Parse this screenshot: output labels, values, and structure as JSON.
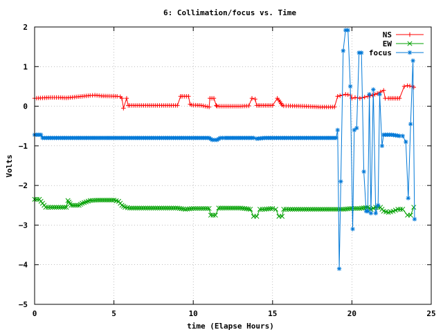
{
  "chart_data": {
    "type": "line",
    "title": "6: Collimation/focus vs. Time",
    "xlabel": "time (Elapse Hours)",
    "ylabel": "Volts",
    "xlim": [
      0,
      25
    ],
    "ylim": [
      -5,
      2
    ],
    "xticks": [
      "0",
      "5",
      "10",
      "15",
      "20",
      "25"
    ],
    "yticks": [
      "2",
      "1",
      "0",
      "−1",
      "−2",
      "−3",
      "−4",
      "−5"
    ],
    "grid": true,
    "legend_position": "top-right",
    "series": [
      {
        "name": "NS",
        "color": "#ff0000",
        "marker": "plus",
        "x": [
          0,
          0.5,
          1,
          1.5,
          2,
          2.5,
          3,
          3.5,
          3.8,
          4.2,
          5.2,
          5.4,
          5.5,
          5.6,
          5.8,
          5.9,
          6,
          7,
          8,
          9,
          9.2,
          9.3,
          9.7,
          9.8,
          9.9,
          10.5,
          11,
          11.05,
          11.3,
          11.45,
          11.5,
          12,
          13,
          13.5,
          13.7,
          13.9,
          14,
          14.1,
          14.2,
          15,
          15.3,
          15.4,
          15.6,
          15.7,
          16,
          17,
          18,
          18.9,
          19.1,
          19.4,
          19.6,
          19.9,
          20,
          20.2,
          20.5,
          20.8,
          21,
          21.3,
          21.6,
          21.8,
          22,
          22.1,
          22.3,
          23,
          23.3,
          23.5,
          23.8,
          23.9
        ],
        "y": [
          0.2,
          0.21,
          0.22,
          0.22,
          0.21,
          0.23,
          0.25,
          0.27,
          0.28,
          0.26,
          0.25,
          0.24,
          0.2,
          -0.05,
          0.2,
          0.02,
          0.02,
          0.02,
          0.02,
          0.02,
          0.25,
          0.25,
          0.25,
          0.05,
          0.03,
          0.02,
          -0.02,
          0.2,
          0.2,
          0.02,
          0.0,
          0.0,
          0.0,
          0.01,
          0.2,
          0.18,
          0.02,
          0.02,
          0.02,
          0.02,
          0.2,
          0.15,
          0.03,
          0.01,
          0.01,
          0.0,
          -0.02,
          -0.02,
          0.25,
          0.28,
          0.3,
          0.28,
          0.2,
          0.22,
          0.2,
          0.23,
          0.25,
          0.28,
          0.32,
          0.36,
          0.4,
          0.2,
          0.2,
          0.2,
          0.5,
          0.52,
          0.5,
          0.48
        ]
      },
      {
        "name": "EW",
        "color": "#00a000",
        "marker": "cross",
        "x": [
          0,
          0.3,
          0.5,
          0.7,
          1,
          1.5,
          2,
          2.1,
          2.3,
          2.8,
          3,
          3.5,
          4,
          5,
          5.3,
          5.5,
          5.7,
          6,
          7,
          8,
          9,
          9.5,
          10,
          10.5,
          11,
          11.1,
          11.4,
          11.6,
          12,
          13,
          13.6,
          13.8,
          14,
          14.2,
          14.5,
          15,
          15.2,
          15.4,
          15.6,
          15.7,
          16,
          17,
          18,
          19,
          19.5,
          20,
          20.5,
          21,
          21.2,
          21.5,
          21.8,
          22,
          22.3,
          22.6,
          22.9,
          23.2,
          23.5,
          23.7,
          23.9
        ],
        "y": [
          -2.35,
          -2.35,
          -2.45,
          -2.55,
          -2.55,
          -2.55,
          -2.55,
          -2.38,
          -2.5,
          -2.5,
          -2.45,
          -2.38,
          -2.37,
          -2.37,
          -2.4,
          -2.5,
          -2.55,
          -2.57,
          -2.57,
          -2.57,
          -2.57,
          -2.6,
          -2.58,
          -2.58,
          -2.58,
          -2.75,
          -2.75,
          -2.57,
          -2.57,
          -2.57,
          -2.6,
          -2.78,
          -2.78,
          -2.6,
          -2.6,
          -2.58,
          -2.6,
          -2.78,
          -2.78,
          -2.6,
          -2.6,
          -2.6,
          -2.6,
          -2.6,
          -2.6,
          -2.58,
          -2.58,
          -2.55,
          -2.6,
          -2.55,
          -2.55,
          -2.65,
          -2.68,
          -2.65,
          -2.6,
          -2.6,
          -2.75,
          -2.75,
          -2.55
        ]
      },
      {
        "name": "focus",
        "color": "#0078d7",
        "marker": "star",
        "x": [
          0,
          0.4,
          0.5,
          1,
          2,
          3,
          4,
          5,
          6,
          7,
          8,
          9,
          10,
          11,
          11.2,
          11.5,
          11.7,
          12,
          13,
          13.8,
          14,
          14.5,
          15,
          15.5,
          16,
          17,
          18,
          19,
          19.1,
          19.2,
          19.3,
          19.45,
          19.6,
          19.75,
          19.9,
          20.05,
          20.15,
          20.3,
          20.45,
          20.6,
          20.75,
          20.9,
          21.0,
          21.1,
          21.2,
          21.35,
          21.5,
          21.65,
          21.75,
          21.9,
          22.0,
          22.1,
          22.5,
          23.0,
          23.2,
          23.4,
          23.55,
          23.7,
          23.85,
          23.95
        ],
        "y": [
          -0.72,
          -0.72,
          -0.8,
          -0.8,
          -0.8,
          -0.8,
          -0.8,
          -0.8,
          -0.8,
          -0.8,
          -0.8,
          -0.8,
          -0.8,
          -0.8,
          -0.85,
          -0.85,
          -0.8,
          -0.8,
          -0.8,
          -0.8,
          -0.82,
          -0.8,
          -0.8,
          -0.8,
          -0.8,
          -0.8,
          -0.8,
          -0.8,
          -0.6,
          -4.1,
          -1.9,
          1.4,
          1.92,
          1.92,
          0.5,
          -3.1,
          -0.6,
          -0.55,
          1.35,
          1.35,
          -1.65,
          -2.65,
          -2.65,
          0.3,
          -2.7,
          0.42,
          -2.7,
          -2.5,
          0.3,
          -1.0,
          -0.72,
          -0.72,
          -0.72,
          -0.75,
          -0.75,
          -0.9,
          -2.32,
          -0.45,
          1.15,
          -2.85
        ]
      }
    ]
  }
}
